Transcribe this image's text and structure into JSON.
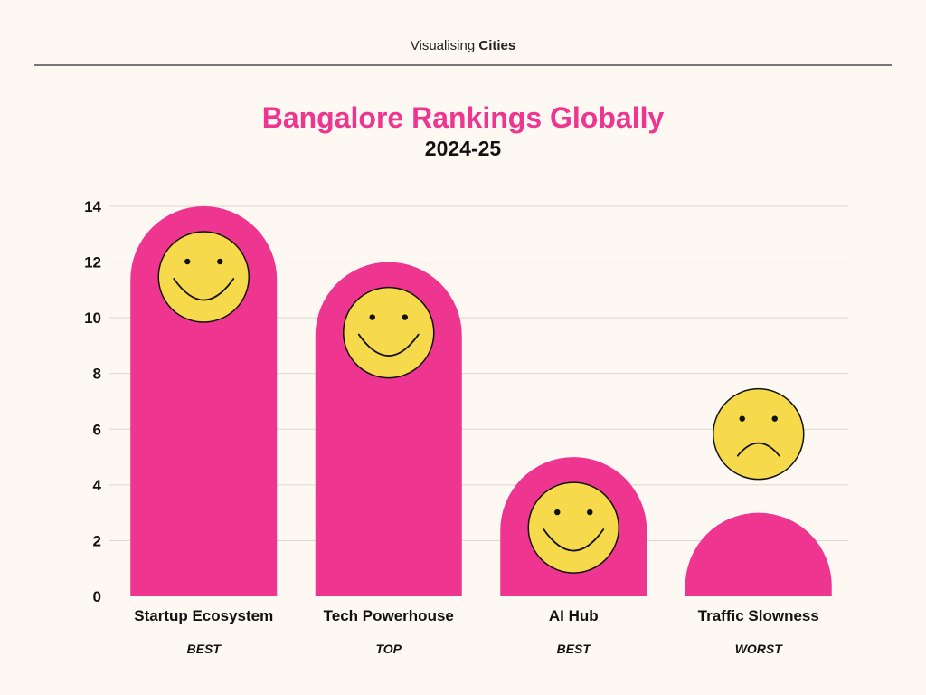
{
  "header": {
    "brand_prefix": "Visualising ",
    "brand_strong": "Cities"
  },
  "colors": {
    "bar": "#ee3590",
    "face": "#f7d94c",
    "title": "#ee3590",
    "grid": "#d8d6d0",
    "background": "#fdf9f2"
  },
  "chart_data": {
    "type": "bar",
    "title": "Bangalore Rankings Globally",
    "subtitle": "2024-25",
    "categories": [
      "Startup Ecosystem",
      "Tech Powerhouse",
      "AI Hub",
      "Traffic Slowness"
    ],
    "descriptors": [
      "BEST",
      "TOP",
      "BEST",
      "WORST"
    ],
    "values": [
      14,
      12,
      5,
      3
    ],
    "face_icons": [
      "smile-face-icon",
      "smile-face-icon",
      "smile-face-icon",
      "sad-face-icon"
    ],
    "ylim": [
      0,
      14
    ],
    "yticks": [
      0,
      2,
      4,
      6,
      8,
      10,
      12,
      14
    ],
    "grid": true,
    "xlabel": "",
    "ylabel": ""
  }
}
